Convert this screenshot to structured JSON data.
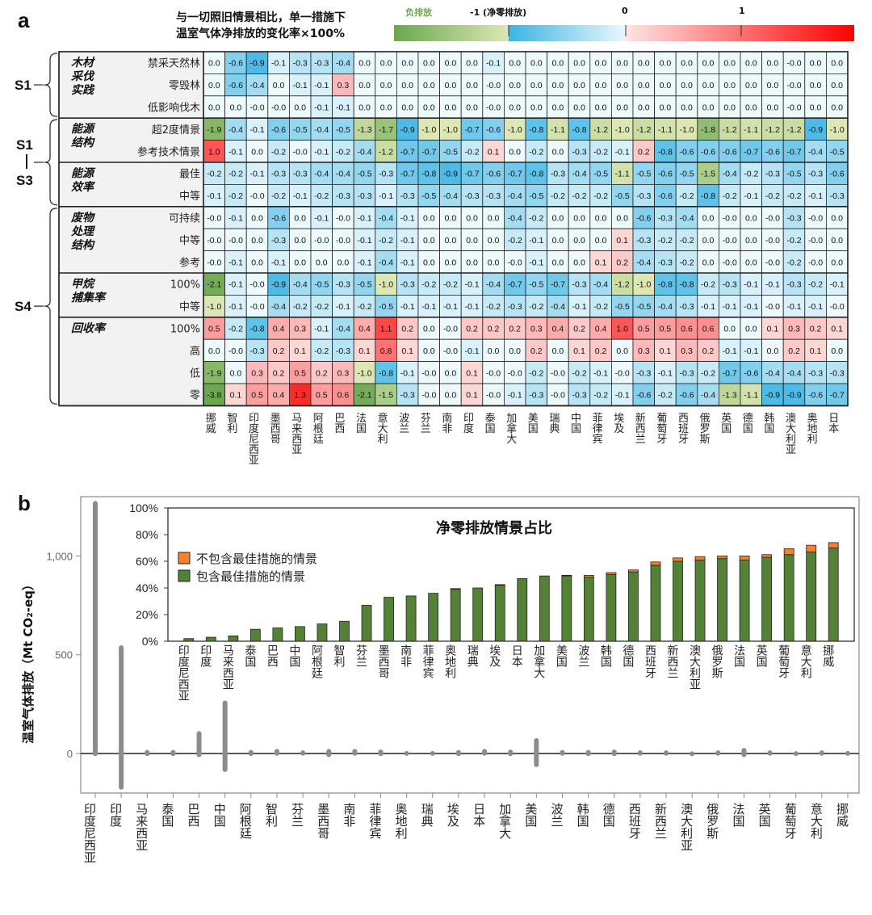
{
  "panel_a": {
    "letter": "a",
    "title_line1": "与一切照旧情景相比，单一措施下",
    "title_line2": "温室气体净排放的变化率×100%",
    "colorbar": {
      "label_negative": "负排放",
      "label_minus1": "-1 (净零排放)",
      "label_0": "0",
      "label_1": "1",
      "colors": {
        "green_dark": "#6aa84f",
        "green_light": "#dde7b4",
        "blue_dark": "#3cb4e4",
        "blue_light": "#eaf8fc",
        "red_light": "#fde4e4",
        "red_dark": "#ff0000"
      }
    }
  },
  "chart_data": [
    {
      "type": "heatmap",
      "title": "与一切照旧情景相比，单一措施下温室气体净排放的变化率×100%",
      "columns": [
        "挪威",
        "智利",
        "印度尼西亚",
        "墨西哥",
        "马来西亚",
        "阿根廷",
        "巴西",
        "法国",
        "意大利",
        "波兰",
        "芬兰",
        "南非",
        "印度",
        "泰国",
        "加拿大",
        "美国",
        "瑞典",
        "中国",
        "菲律宾",
        "埃及",
        "新西兰",
        "葡萄牙",
        "西班牙",
        "俄罗斯",
        "英国",
        "德国",
        "韩国",
        "澳大利亚",
        "奥地利",
        "日本"
      ],
      "scope_groups": [
        {
          "label": "S1",
          "rows": [
            0,
            2
          ]
        },
        {
          "label": "S1 — S3",
          "rows": [
            3,
            6
          ]
        },
        {
          "label": "S4",
          "rows": [
            7,
            15
          ]
        }
      ],
      "row_groups": [
        {
          "label": "木材采伐实践",
          "lines": [
            "木材",
            "采伐",
            "实践"
          ],
          "rows": [
            0,
            2
          ]
        },
        {
          "label": "能源结构",
          "lines": [
            "能源",
            "结构"
          ],
          "rows": [
            3,
            4
          ]
        },
        {
          "label": "能源效率",
          "lines": [
            "能源",
            "效率"
          ],
          "rows": [
            5,
            6
          ]
        },
        {
          "label": "废物处理结构",
          "lines": [
            "废物",
            "处理",
            "结构"
          ],
          "rows": [
            7,
            9
          ]
        },
        {
          "label": "甲烷捕集率",
          "lines": [
            "甲烷",
            "捕集率"
          ],
          "rows": [
            10,
            11
          ]
        },
        {
          "label": "回收率",
          "lines": [
            "回收率"
          ],
          "rows": [
            12,
            15
          ]
        }
      ],
      "rows": [
        {
          "label": "禁采天然林",
          "values": [
            "0.0",
            "-0.6",
            "-0.9",
            "-0.1",
            "-0.3",
            "-0.3",
            "-0.4",
            "0.0",
            "0.0",
            "0.0",
            "0.0",
            "0.0",
            "0.0",
            "-0.1",
            "0.0",
            "0.0",
            "0.0",
            "0.0",
            "0.0",
            "0.0",
            "0.0",
            "0.0",
            "0.0",
            "0.0",
            "0.0",
            "0.0",
            "0.0",
            "-0.0",
            "0.0",
            "0.0"
          ]
        },
        {
          "label": "零毁林",
          "values": [
            "0.0",
            "-0.6",
            "-0.4",
            "0.0",
            "-0.1",
            "-0.1",
            "0.3",
            "0.0",
            "0.0",
            "0.0",
            "0.0",
            "0.0",
            "0.0",
            "-0.0",
            "0.0",
            "0.0",
            "0.0",
            "0.0",
            "0.0",
            "0.0",
            "0.0",
            "0.0",
            "0.0",
            "0.0",
            "0.0",
            "0.0",
            "0.0",
            "-0.0",
            "0.0",
            "0.0"
          ]
        },
        {
          "label": "低影响伐木",
          "values": [
            "0.0",
            "0.0",
            "-0.0",
            "-0.0",
            "0.0",
            "-0.1",
            "-0.1",
            "0.0",
            "0.0",
            "0.0",
            "0.0",
            "0.0",
            "0.0",
            "-0.0",
            "0.0",
            "0.0",
            "0.0",
            "0.0",
            "0.0",
            "0.0",
            "0.0",
            "0.0",
            "0.0",
            "0.0",
            "0.0",
            "0.0",
            "0.0",
            "-0.0",
            "0.0",
            "0.0"
          ]
        },
        {
          "label": "超2度情景",
          "values": [
            "-1.9",
            "-0.4",
            "-0.1",
            "-0.6",
            "-0.5",
            "-0.4",
            "-0.5",
            "-1.3",
            "-1.7",
            "-0.9",
            "-1.0",
            "-1.0",
            "-0.7",
            "-0.6",
            "-1.0",
            "-0.8",
            "-1.1",
            "-0.8",
            "-1.2",
            "-1.0",
            "-1.2",
            "-1.1",
            "-1.0",
            "-1.8",
            "-1.2",
            "-1.1",
            "-1.2",
            "-1.2",
            "-0.9",
            "-1.0"
          ]
        },
        {
          "label": "参考技术情景",
          "values": [
            "1.0",
            "-0.1",
            "0.0",
            "-0.2",
            "-0.0",
            "-0.1",
            "-0.2",
            "-0.4",
            "-1.2",
            "-0.7",
            "-0.7",
            "-0.5",
            "-0.2",
            "0.1",
            "0.0",
            "-0.2",
            "0.0",
            "-0.3",
            "-0.2",
            "-0.1",
            "0.2",
            "-0.8",
            "-0.6",
            "-0.6",
            "-0.6",
            "-0.7",
            "-0.6",
            "-0.7",
            "-0.4",
            "-0.5"
          ]
        },
        {
          "label": "最佳",
          "values": [
            "-0.2",
            "-0.2",
            "-0.1",
            "-0.3",
            "-0.3",
            "-0.4",
            "-0.4",
            "-0.5",
            "-0.3",
            "-0.7",
            "-0.8",
            "-0.9",
            "-0.7",
            "-0.6",
            "-0.7",
            "-0.8",
            "-0.3",
            "-0.4",
            "-0.5",
            "-1.1",
            "-0.5",
            "-0.6",
            "-0.5",
            "-1.5",
            "-0.4",
            "-0.2",
            "-0.3",
            "-0.5",
            "-0.3",
            "-0.6"
          ]
        },
        {
          "label": "中等",
          "values": [
            "-0.1",
            "-0.2",
            "-0.0",
            "-0.2",
            "-0.1",
            "-0.2",
            "-0.3",
            "-0.3",
            "-0.1",
            "-0.3",
            "-0.5",
            "-0.4",
            "-0.3",
            "-0.3",
            "-0.4",
            "-0.5",
            "-0.2",
            "-0.2",
            "-0.2",
            "-0.5",
            "-0.3",
            "-0.6",
            "-0.2",
            "-0.8",
            "-0.2",
            "-0.1",
            "-0.2",
            "-0.2",
            "-0.1",
            "-0.3"
          ]
        },
        {
          "label": "可持续",
          "values": [
            "-0.0",
            "-0.1",
            "0.0",
            "-0.6",
            "0.0",
            "-0.1",
            "-0.0",
            "-0.1",
            "-0.4",
            "-0.1",
            "0.0",
            "0.0",
            "0.0",
            "0.0",
            "-0.4",
            "-0.2",
            "0.0",
            "0.0",
            "0.0",
            "0.0",
            "-0.6",
            "-0.3",
            "-0.4",
            "0.0",
            "-0.0",
            "0.0",
            "-0.0",
            "-0.3",
            "-0.0",
            "0.0"
          ]
        },
        {
          "label": "中等",
          "values": [
            "-0.0",
            "-0.0",
            "0.0",
            "-0.3",
            "0.0",
            "-0.0",
            "-0.0",
            "-0.1",
            "-0.2",
            "-0.1",
            "0.0",
            "0.0",
            "0.0",
            "0.0",
            "-0.2",
            "-0.1",
            "0.0",
            "0.0",
            "0.0",
            "0.1",
            "-0.3",
            "-0.2",
            "-0.2",
            "0.0",
            "-0.0",
            "0.0",
            "-0.0",
            "-0.2",
            "-0.0",
            "0.0"
          ]
        },
        {
          "label": "参考",
          "values": [
            "-0.0",
            "-0.1",
            "0.0",
            "-0.1",
            "0.0",
            "0.0",
            "0.0",
            "-0.1",
            "-0.4",
            "-0.1",
            "0.0",
            "0.0",
            "0.0",
            "0.0",
            "-0.0",
            "-0.1",
            "0.0",
            "0.0",
            "0.1",
            "0.2",
            "-0.4",
            "-0.3",
            "-0.2",
            "0.0",
            "-0.0",
            "0.0",
            "-0.0",
            "-0.2",
            "-0.0",
            "0.0"
          ]
        },
        {
          "label": "100%",
          "values": [
            "-2.1",
            "-0.1",
            "-0.0",
            "-0.9",
            "-0.4",
            "-0.5",
            "-0.3",
            "-0.5",
            "-1.0",
            "-0.3",
            "-0.2",
            "-0.2",
            "-0.1",
            "-0.4",
            "-0.7",
            "-0.5",
            "-0.7",
            "-0.3",
            "-0.4",
            "-1.2",
            "-1.0",
            "-0.8",
            "-0.8",
            "-0.2",
            "-0.3",
            "-0.1",
            "-0.1",
            "-0.3",
            "-0.2",
            "-0.1"
          ]
        },
        {
          "label": "中等",
          "values": [
            "-1.0",
            "-0.1",
            "-0.0",
            "-0.4",
            "-0.2",
            "-0.2",
            "-0.1",
            "-0.2",
            "-0.5",
            "-0.1",
            "-0.1",
            "-0.1",
            "-0.1",
            "-0.2",
            "-0.3",
            "-0.2",
            "-0.4",
            "-0.1",
            "-0.2",
            "-0.5",
            "-0.5",
            "-0.4",
            "-0.3",
            "-0.1",
            "-0.1",
            "-0.1",
            "-0.0",
            "-0.1",
            "-0.1",
            "-0.0"
          ]
        },
        {
          "label": "100%",
          "values": [
            "0.5",
            "-0.2",
            "-0.8",
            "0.4",
            "0.3",
            "-0.1",
            "-0.4",
            "0.4",
            "1.1",
            "0.2",
            "0.0",
            "-0.0",
            "0.2",
            "0.2",
            "0.2",
            "0.3",
            "0.4",
            "0.2",
            "0.4",
            "1.0",
            "0.5",
            "0.5",
            "0.6",
            "0.6",
            "0.0",
            "0.0",
            "0.1",
            "0.3",
            "0.2",
            "0.1"
          ]
        },
        {
          "label": "高",
          "values": [
            "0.0",
            "-0.0",
            "-0.3",
            "0.2",
            "0.1",
            "-0.2",
            "-0.3",
            "0.1",
            "0.8",
            "0.1",
            "0.0",
            "-0.0",
            "-0.1",
            "0.0",
            "0.0",
            "0.2",
            "0.0",
            "0.1",
            "0.2",
            "0.0",
            "0.3",
            "0.1",
            "0.3",
            "0.2",
            "-0.1",
            "-0.1",
            "0.0",
            "0.2",
            "0.1",
            "0.0"
          ]
        },
        {
          "label": "低",
          "values": [
            "-1.9",
            "0.0",
            "0.3",
            "0.2",
            "0.5",
            "0.2",
            "0.3",
            "-1.0",
            "-0.8",
            "-0.1",
            "-0.0",
            "0.0",
            "0.1",
            "-0.0",
            "-0.0",
            "-0.2",
            "-0.0",
            "-0.2",
            "-0.1",
            "-0.0",
            "-0.3",
            "-0.1",
            "-0.3",
            "-0.2",
            "-0.7",
            "-0.6",
            "-0.4",
            "-0.4",
            "-0.3",
            "-0.3"
          ]
        },
        {
          "label": "零",
          "values": [
            "-3.8",
            "0.1",
            "0.5",
            "0.4",
            "1.3",
            "0.5",
            "0.6",
            "-2.1",
            "-1.5",
            "-0.3",
            "-0.0",
            "0.0",
            "0.1",
            "-0.0",
            "-0.1",
            "-0.3",
            "-0.0",
            "-0.3",
            "-0.2",
            "-0.1",
            "-0.6",
            "-0.2",
            "-0.6",
            "-0.4",
            "-1.3",
            "-1.1",
            "-0.9",
            "-0.9",
            "-0.6",
            "-0.7"
          ]
        }
      ]
    },
    {
      "type": "scatter",
      "panel": "b",
      "ylabel": "温室气体排放（Mt CO₂-eq）",
      "ylim": [
        -200,
        1300
      ],
      "yticks": [
        "0",
        "500",
        "1,000"
      ],
      "ytick_values": [
        0,
        500,
        1000
      ],
      "categories": [
        "印度尼西亚",
        "印度",
        "马来西亚",
        "泰国",
        "巴西",
        "中国",
        "阿根廷",
        "智利",
        "芬兰",
        "墨西哥",
        "南非",
        "菲律宾",
        "奥地利",
        "瑞典",
        "埃及",
        "日本",
        "加拿大",
        "美国",
        "波兰",
        "韩国",
        "德国",
        "西班牙",
        "新西兰",
        "澳大利亚",
        "俄罗斯",
        "法国",
        "英国",
        "葡萄牙",
        "意大利",
        "挪威"
      ],
      "ranges": [
        [
          -5,
          1270
        ],
        [
          -175,
          540
        ],
        [
          -5,
          10
        ],
        [
          -5,
          10
        ],
        [
          -10,
          105
        ],
        [
          -85,
          260
        ],
        [
          -5,
          10
        ],
        [
          -3,
          15
        ],
        [
          -3,
          8
        ],
        [
          -10,
          15
        ],
        [
          -3,
          15
        ],
        [
          -5,
          12
        ],
        [
          -2,
          5
        ],
        [
          -2,
          5
        ],
        [
          -5,
          10
        ],
        [
          -3,
          15
        ],
        [
          -5,
          12
        ],
        [
          -60,
          70
        ],
        [
          -3,
          10
        ],
        [
          -5,
          10
        ],
        [
          -5,
          12
        ],
        [
          -3,
          8
        ],
        [
          -3,
          8
        ],
        [
          -1,
          3
        ],
        [
          -3,
          8
        ],
        [
          -10,
          20
        ],
        [
          -3,
          8
        ],
        [
          -2,
          4
        ],
        [
          -3,
          8
        ],
        [
          -2,
          5
        ]
      ],
      "zero_line": true
    },
    {
      "type": "bar",
      "panel": "b-inset",
      "title": "净零排放情景占比",
      "ylim": [
        0,
        100
      ],
      "yticks": [
        "0%",
        "20%",
        "40%",
        "60%",
        "80%",
        "100%"
      ],
      "legend": [
        {
          "label": "不包含最佳措施的情景",
          "color": "#f5822a"
        },
        {
          "label": "包含最佳措施的情景",
          "color": "#538135"
        }
      ],
      "legend_position": "top-left",
      "categories": [
        "印度尼西亚",
        "印度",
        "马来西亚",
        "泰国",
        "巴西",
        "中国",
        "阿根廷",
        "智利",
        "芬兰",
        "墨西哥",
        "南非",
        "菲律宾",
        "奥地利",
        "瑞典",
        "埃及",
        "日本",
        "加拿大",
        "美国",
        "波兰",
        "韩国",
        "德国",
        "西班牙",
        "新西兰",
        "澳大利亚",
        "俄罗斯",
        "法国",
        "英国",
        "葡萄牙",
        "意大利",
        "挪威"
      ],
      "series": [
        {
          "name": "包含最佳措施的情景",
          "values": [
            2,
            3,
            4,
            9,
            10,
            11,
            13,
            15,
            27,
            33,
            34,
            36,
            39,
            40,
            42,
            47,
            49,
            49,
            48,
            50,
            52,
            57,
            60,
            61,
            62,
            61,
            63,
            65,
            67,
            70
          ]
        },
        {
          "name": "不包含最佳措施的情景",
          "values": [
            0,
            0,
            0,
            0,
            0,
            0,
            0,
            0,
            0,
            0,
            0,
            0,
            0.5,
            0,
            0.5,
            0,
            0,
            0.5,
            1.5,
            1.5,
            1.5,
            2.5,
            2.5,
            2.5,
            2,
            3,
            2,
            4.5,
            5,
            4
          ]
        }
      ]
    }
  ],
  "panel_b": {
    "letter": "b"
  }
}
